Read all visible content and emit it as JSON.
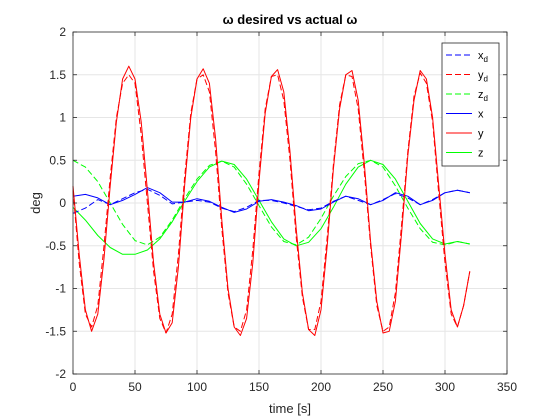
{
  "chart_data": {
    "type": "line",
    "title": "ω desired vs actual ω",
    "xlabel": "time [s]",
    "ylabel": "deg",
    "xlim": [
      0,
      350
    ],
    "ylim": [
      -2,
      2
    ],
    "xticks": [
      0,
      50,
      100,
      150,
      200,
      250,
      300,
      350
    ],
    "yticks": [
      -2,
      -1.5,
      -1,
      -0.5,
      0,
      0.5,
      1,
      1.5,
      2
    ],
    "grid": true,
    "legend_position": "top-right",
    "series": [
      {
        "name": "x",
        "subscript": "d",
        "color": "#0000ff",
        "style": "dashed",
        "x": [
          0,
          10,
          20,
          30,
          40,
          50,
          60,
          70,
          80,
          90,
          100,
          110,
          120,
          130,
          140,
          150,
          160,
          170,
          180,
          190,
          200,
          210,
          220,
          230,
          240,
          250,
          260,
          270,
          280,
          290,
          300,
          310,
          320
        ],
        "y": [
          -0.12,
          -0.06,
          0.04,
          -0.02,
          0.05,
          0.12,
          0.16,
          0.09,
          -0.01,
          0.01,
          0.03,
          0.01,
          -0.06,
          -0.1,
          -0.05,
          0.03,
          0.03,
          0.0,
          -0.04,
          -0.08,
          -0.06,
          0.02,
          0.08,
          0.03,
          -0.02,
          0.04,
          0.11,
          0.06,
          -0.02,
          0.04,
          0.12,
          0.15,
          0.12
        ]
      },
      {
        "name": "y",
        "subscript": "d",
        "color": "#ff0000",
        "style": "dashed",
        "x": [
          0,
          5,
          10,
          15,
          20,
          25,
          30,
          35,
          40,
          45,
          50,
          55,
          60,
          65,
          70,
          75,
          80,
          85,
          90,
          95,
          100,
          105,
          110,
          115,
          120,
          125,
          130,
          135,
          140,
          145,
          150,
          155,
          160,
          165,
          170,
          175,
          180,
          185,
          190,
          195,
          200,
          205,
          210,
          215,
          220,
          225,
          230,
          235,
          240,
          245,
          250,
          255,
          260,
          265,
          270,
          275,
          280,
          285,
          290,
          295,
          300,
          305,
          310,
          315,
          320
        ],
        "y": [
          0.15,
          -0.7,
          -1.3,
          -1.45,
          -1.2,
          -0.5,
          0.3,
          1.0,
          1.4,
          1.5,
          1.4,
          0.8,
          0.0,
          -0.8,
          -1.35,
          -1.52,
          -1.3,
          -0.6,
          0.3,
          1.05,
          1.45,
          1.5,
          1.3,
          0.6,
          -0.3,
          -1.05,
          -1.45,
          -1.5,
          -1.25,
          -0.55,
          0.35,
          1.1,
          1.48,
          1.5,
          1.2,
          0.5,
          -0.4,
          -1.1,
          -1.48,
          -1.48,
          -1.15,
          -0.4,
          0.45,
          1.15,
          1.5,
          1.48,
          1.1,
          0.35,
          -0.5,
          -1.2,
          -1.5,
          -1.45,
          -1.05,
          -0.25,
          0.6,
          1.25,
          1.52,
          1.4,
          0.95,
          0.1,
          -0.7,
          -1.3,
          -1.45,
          -1.2,
          -0.8
        ]
      },
      {
        "name": "z",
        "subscript": "d",
        "color": "#00ff00",
        "style": "dashed",
        "x": [
          0,
          10,
          20,
          30,
          40,
          50,
          60,
          70,
          80,
          90,
          100,
          110,
          120,
          130,
          140,
          150,
          160,
          170,
          180,
          190,
          200,
          210,
          220,
          230,
          240,
          250,
          260,
          270,
          280,
          290,
          300,
          310,
          320
        ],
        "y": [
          0.5,
          0.42,
          0.25,
          0.0,
          -0.25,
          -0.44,
          -0.49,
          -0.4,
          -0.2,
          0.05,
          0.28,
          0.44,
          0.49,
          0.42,
          0.22,
          -0.03,
          -0.28,
          -0.45,
          -0.49,
          -0.4,
          -0.18,
          0.08,
          0.31,
          0.46,
          0.5,
          0.42,
          0.2,
          -0.06,
          -0.3,
          -0.46,
          -0.49,
          -0.45,
          -0.48
        ]
      },
      {
        "name": "x",
        "subscript": "",
        "color": "#0000ff",
        "style": "solid",
        "x": [
          0,
          10,
          20,
          30,
          40,
          50,
          60,
          70,
          80,
          90,
          100,
          110,
          120,
          130,
          140,
          150,
          160,
          170,
          180,
          190,
          200,
          210,
          220,
          230,
          240,
          250,
          260,
          270,
          280,
          290,
          300,
          310,
          320
        ],
        "y": [
          0.08,
          0.1,
          0.06,
          -0.02,
          0.03,
          0.1,
          0.18,
          0.12,
          0.01,
          0.01,
          0.05,
          0.02,
          -0.05,
          -0.11,
          -0.07,
          0.02,
          0.04,
          0.01,
          -0.03,
          -0.09,
          -0.07,
          0.01,
          0.08,
          0.05,
          -0.02,
          0.03,
          0.12,
          0.08,
          -0.02,
          0.03,
          0.12,
          0.15,
          0.12
        ]
      },
      {
        "name": "y",
        "subscript": "",
        "color": "#ff0000",
        "style": "solid",
        "x": [
          0,
          5,
          10,
          15,
          20,
          25,
          30,
          35,
          40,
          45,
          50,
          55,
          60,
          65,
          70,
          75,
          80,
          85,
          90,
          95,
          100,
          105,
          110,
          115,
          120,
          125,
          130,
          135,
          140,
          145,
          150,
          155,
          160,
          165,
          170,
          175,
          180,
          185,
          190,
          195,
          200,
          205,
          210,
          215,
          220,
          225,
          230,
          235,
          240,
          245,
          250,
          255,
          260,
          265,
          270,
          275,
          280,
          285,
          290,
          295,
          300,
          305,
          310,
          315,
          320
        ],
        "y": [
          0.2,
          -0.6,
          -1.25,
          -1.5,
          -1.3,
          -0.65,
          0.2,
          0.95,
          1.45,
          1.6,
          1.45,
          0.95,
          0.15,
          -0.7,
          -1.3,
          -1.52,
          -1.4,
          -0.75,
          0.2,
          1.0,
          1.45,
          1.57,
          1.4,
          0.75,
          -0.2,
          -1.0,
          -1.45,
          -1.55,
          -1.35,
          -0.7,
          0.25,
          1.05,
          1.48,
          1.56,
          1.3,
          0.6,
          -0.3,
          -1.05,
          -1.48,
          -1.55,
          -1.25,
          -0.5,
          0.4,
          1.1,
          1.5,
          1.55,
          1.2,
          0.45,
          -0.45,
          -1.15,
          -1.52,
          -1.5,
          -1.15,
          -0.35,
          0.55,
          1.2,
          1.55,
          1.45,
          1.0,
          0.2,
          -0.6,
          -1.25,
          -1.45,
          -1.2,
          -0.8
        ]
      },
      {
        "name": "z",
        "subscript": "",
        "color": "#00ff00",
        "style": "solid",
        "x": [
          0,
          10,
          20,
          30,
          40,
          50,
          60,
          70,
          80,
          90,
          100,
          110,
          120,
          130,
          140,
          150,
          160,
          170,
          180,
          190,
          200,
          210,
          220,
          230,
          240,
          250,
          260,
          270,
          280,
          290,
          300,
          310,
          320
        ],
        "y": [
          -0.05,
          -0.2,
          -0.38,
          -0.52,
          -0.6,
          -0.6,
          -0.55,
          -0.42,
          -0.22,
          0.02,
          0.25,
          0.42,
          0.49,
          0.45,
          0.28,
          0.03,
          -0.22,
          -0.42,
          -0.5,
          -0.46,
          -0.3,
          -0.05,
          0.22,
          0.42,
          0.5,
          0.45,
          0.28,
          0.02,
          -0.24,
          -0.42,
          -0.48,
          -0.45,
          -0.48
        ]
      }
    ]
  }
}
